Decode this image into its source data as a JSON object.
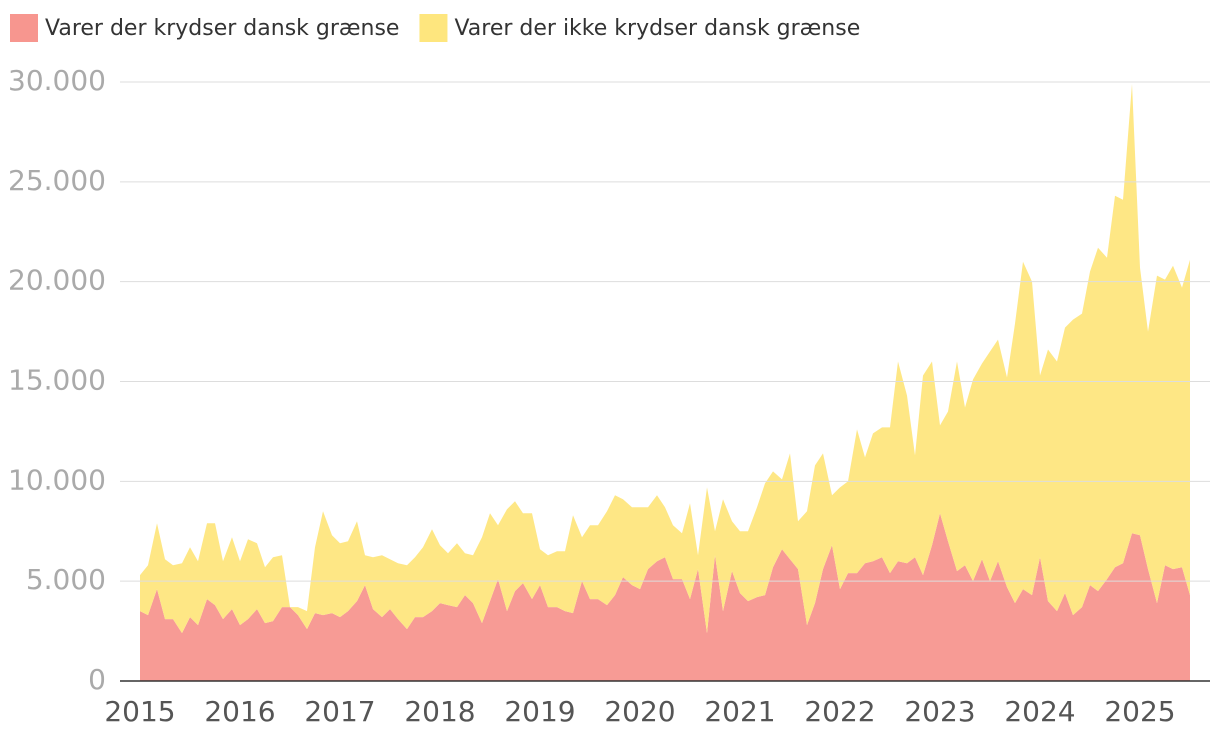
{
  "chart_data": {
    "type": "stacked_area",
    "x": [
      2015,
      2015.08,
      2015.17,
      2015.25,
      2015.33,
      2015.42,
      2015.5,
      2015.58,
      2015.67,
      2015.75,
      2015.83,
      2015.92,
      2016,
      2016.08,
      2016.17,
      2016.25,
      2016.33,
      2016.42,
      2016.5,
      2016.58,
      2016.67,
      2016.75,
      2016.83,
      2016.92,
      2017,
      2017.08,
      2017.17,
      2017.25,
      2017.33,
      2017.42,
      2017.5,
      2017.58,
      2017.67,
      2017.75,
      2017.83,
      2017.92,
      2018,
      2018.08,
      2018.17,
      2018.25,
      2018.33,
      2018.42,
      2018.5,
      2018.58,
      2018.67,
      2018.75,
      2018.83,
      2018.92,
      2019,
      2019.08,
      2019.17,
      2019.25,
      2019.33,
      2019.42,
      2019.5,
      2019.58,
      2019.67,
      2019.75,
      2019.83,
      2019.92,
      2020,
      2020.08,
      2020.17,
      2020.25,
      2020.33,
      2020.42,
      2020.5,
      2020.58,
      2020.67,
      2020.75,
      2020.83,
      2020.92,
      2021,
      2021.08,
      2021.17,
      2021.25,
      2021.33,
      2021.42,
      2021.5,
      2021.58,
      2021.67,
      2021.75,
      2021.83,
      2021.92,
      2022,
      2022.08,
      2022.17,
      2022.25,
      2022.33,
      2022.42,
      2022.5,
      2022.58,
      2022.67,
      2022.75,
      2022.83,
      2022.92,
      2023,
      2023.08,
      2023.17,
      2023.25,
      2023.33,
      2023.42,
      2023.5,
      2023.58,
      2023.67,
      2023.75,
      2023.83,
      2023.92,
      2024,
      2024.08,
      2024.17,
      2024.25,
      2024.33,
      2024.42,
      2024.5,
      2024.58,
      2024.67,
      2024.75,
      2024.83,
      2024.92,
      2025,
      2025.08,
      2025.17,
      2025.25,
      2025.33,
      2025.42,
      2025.5
    ],
    "series": [
      {
        "name": "Varer der krydser dansk grænse",
        "color": "#f7968f",
        "values": [
          3500,
          3300,
          4600,
          3100,
          3100,
          2400,
          3200,
          2800,
          4100,
          3800,
          3100,
          3600,
          2800,
          3100,
          3600,
          2900,
          3000,
          3700,
          3700,
          3300,
          2600,
          3400,
          3300,
          3400,
          3200,
          3500,
          4000,
          4800,
          3600,
          3200,
          3600,
          3100,
          2600,
          3200,
          3200,
          3500,
          3900,
          3800,
          3700,
          4300,
          3900,
          2900,
          4000,
          5100,
          3500,
          4500,
          4900,
          4100,
          4800,
          3700,
          3700,
          3500,
          3400,
          5000,
          4100,
          4100,
          3800,
          4300,
          5200,
          4800,
          4600,
          5600,
          6000,
          6200,
          5100,
          5100,
          4100,
          5600,
          2400,
          6300,
          3500,
          5500,
          4400,
          4000,
          4200,
          4300,
          5700,
          6600,
          6100,
          5600,
          2800,
          3900,
          5600,
          6800,
          4600,
          5400,
          5400,
          5900,
          6000,
          6200,
          5400,
          6000,
          5900,
          6200,
          5300,
          6800,
          8400,
          7000,
          5500,
          5800,
          5000,
          6100,
          5000,
          6000,
          4700,
          3900,
          4600,
          4300,
          6200,
          4000,
          3500,
          4400,
          3300,
          3700,
          4800,
          4500,
          5100,
          5700,
          5900,
          7400,
          7300,
          5600,
          3900,
          5800,
          5600,
          5700,
          4300
        ]
      },
      {
        "name": "Varer der ikke krydser dansk grænse",
        "color": "#fee67e",
        "values": [
          1800,
          2500,
          3300,
          3000,
          2700,
          3500,
          3500,
          3200,
          3800,
          4100,
          2900,
          3600,
          3200,
          4000,
          3300,
          2800,
          3200,
          2600,
          0,
          400,
          900,
          3300,
          5200,
          3900,
          3700,
          3500,
          4000,
          1500,
          2600,
          3100,
          2500,
          2800,
          3200,
          3000,
          3500,
          4100,
          2900,
          2600,
          3200,
          2100,
          2400,
          4300,
          4400,
          2700,
          5100,
          4500,
          3500,
          4300,
          1800,
          2600,
          2800,
          3000,
          4900,
          2200,
          3700,
          3700,
          4700,
          5000,
          3900,
          3900,
          4100,
          3100,
          3300,
          2500,
          2700,
          2300,
          4800,
          700,
          7300,
          1200,
          5600,
          2500,
          3100,
          3500,
          4500,
          5600,
          4800,
          3500,
          5300,
          2400,
          5700,
          6900,
          5800,
          2500,
          5100,
          4600,
          7200,
          5300,
          6400,
          6500,
          7300,
          10000,
          8400,
          5100,
          10000,
          9200,
          4400,
          6500,
          10500,
          7900,
          10100,
          9800,
          11500,
          11100,
          10500,
          14000,
          16400,
          15700,
          9100,
          12600,
          12500,
          13300,
          14800,
          14700,
          15700,
          17200,
          16100,
          18600,
          18200,
          22500,
          13400,
          11900,
          16400,
          14300,
          15200,
          14000,
          16800
        ]
      }
    ],
    "xlim": [
      2014.8,
      2025.7
    ],
    "xticks": [
      2015,
      2016,
      2017,
      2018,
      2019,
      2020,
      2021,
      2022,
      2023,
      2024,
      2025
    ],
    "ylim": [
      0,
      30000
    ],
    "yticks": [
      0,
      {
        "value": 5000,
        "label": "5.000"
      },
      {
        "value": 10000,
        "label": "10.000"
      },
      {
        "value": 15000,
        "label": "15.000"
      },
      {
        "value": 20000,
        "label": "20.000"
      },
      {
        "value": 25000,
        "label": "25.000"
      },
      {
        "value": 30000,
        "label": "30.000"
      }
    ],
    "grid": true,
    "legend": "top-left"
  }
}
